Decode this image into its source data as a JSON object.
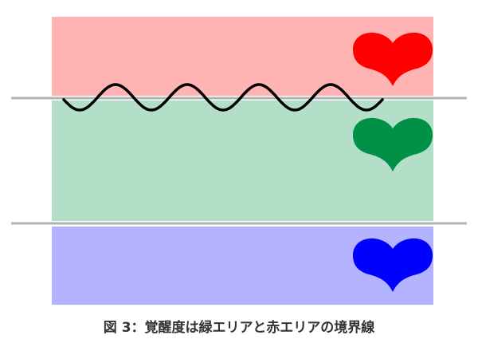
{
  "caption": "図 3：覚醒度は緑エリアと赤エリアの境界線",
  "colors": {
    "red_area": "#ffb3b3",
    "green_area": "#b3dfc9",
    "blue_area": "#b3b3ff",
    "red_heart": "#ff0000",
    "green_heart": "#009146",
    "blue_heart": "#0000ff",
    "boundary_line": "#b3b3b3",
    "wave": "#000000"
  }
}
